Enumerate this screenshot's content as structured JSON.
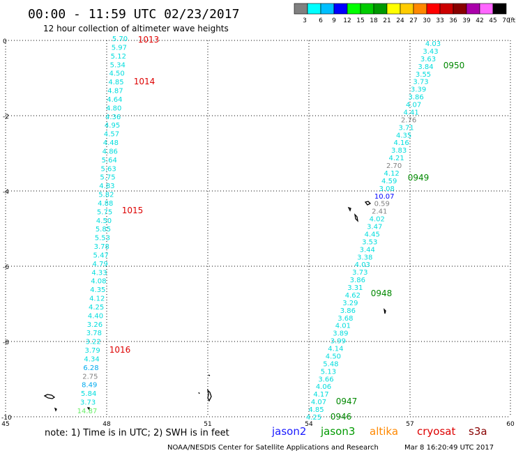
{
  "header": {
    "title": "00:00 - 11:59 UTC 02/23/2017",
    "subtitle": "12 hour collection of altimeter wave heights"
  },
  "colorbar": {
    "unit": "(ft)",
    "ticks": [
      "3",
      "6",
      "9",
      "12",
      "15",
      "18",
      "21",
      "24",
      "27",
      "30",
      "33",
      "36",
      "39",
      "42",
      "45",
      "70"
    ],
    "colors": [
      "#808080",
      "#00ffff",
      "#00bfff",
      "#0000ff",
      "#00ff00",
      "#00cc00",
      "#009900",
      "#ffff00",
      "#ffcc00",
      "#ff8800",
      "#ff0000",
      "#cc0000",
      "#880000",
      "#aa00aa",
      "#ff66ff",
      "#000000"
    ]
  },
  "axes": {
    "x_ticks": [
      "45",
      "48",
      "51",
      "54",
      "57",
      "60"
    ],
    "y_ticks": [
      "0",
      "-2",
      "-4",
      "-6",
      "-8",
      "-10"
    ]
  },
  "tracks": {
    "track1": {
      "values": [
        "5.70",
        "5.97",
        "5.12",
        "5.34",
        "4.50",
        "4.85",
        "4.87",
        "4.64",
        "4.80",
        "4.36",
        "4.95",
        "4.57",
        "4.48",
        "4.86",
        "5.64",
        "5.63",
        "5.75",
        "4.83",
        "5.82",
        "4.88",
        "5.75",
        "4.50",
        "5.85",
        "5.53",
        "3.78",
        "5.47",
        "4.79",
        "4.33",
        "4.08",
        "4.35",
        "4.12",
        "4.25",
        "4.40",
        "3.26",
        "3.78",
        "3.22",
        "3.79",
        "4.34",
        "6.28",
        "2.75",
        "8.49",
        "5.84",
        "3.73",
        "14.87"
      ],
      "time_labels": [
        "1013",
        "1014",
        "1015",
        "1016"
      ]
    },
    "track2": {
      "values": [
        "4.03",
        "3.43",
        "3.63",
        "3.84",
        "3.55",
        "3.73",
        "3.39",
        "3.86",
        "4.07",
        "4.41",
        "2.76",
        "3.71",
        "4.35",
        "4.16",
        "3.83",
        "4.21",
        "2.70",
        "4.12",
        "4.59",
        "3.08",
        "10.07",
        "0.59",
        "2.41",
        "4.02",
        "3.47",
        "4.45",
        "3.53",
        "3.44",
        "3.38",
        "4.03",
        "3.73",
        "3.86",
        "3.31",
        "4.62",
        "3.29",
        "3.86",
        "3.68",
        "4.01",
        "3.89",
        "3.99",
        "4.14",
        "4.50",
        "5.48",
        "5.13",
        "3.66",
        "4.06",
        "4.17",
        "4.07",
        "4.85",
        "4.25"
      ],
      "time_labels": [
        "0950",
        "0949",
        "0948",
        "0947",
        "0946"
      ]
    }
  },
  "legend": {
    "note": "note:  1) Time is in UTC;  2) SWH is in feet",
    "satellites": [
      {
        "name": "jason2",
        "color": "#1a1aff"
      },
      {
        "name": "jason3",
        "color": "#009900"
      },
      {
        "name": "altika",
        "color": "#ff8800"
      },
      {
        "name": "cryosat",
        "color": "#dd0000"
      },
      {
        "name": "s3a",
        "color": "#880000"
      }
    ]
  },
  "footer": {
    "credit": "NOAA/NESDIS Center for Satellite Applications and Research",
    "timestamp": "Mar  8 16:20:49 UTC 2017"
  }
}
